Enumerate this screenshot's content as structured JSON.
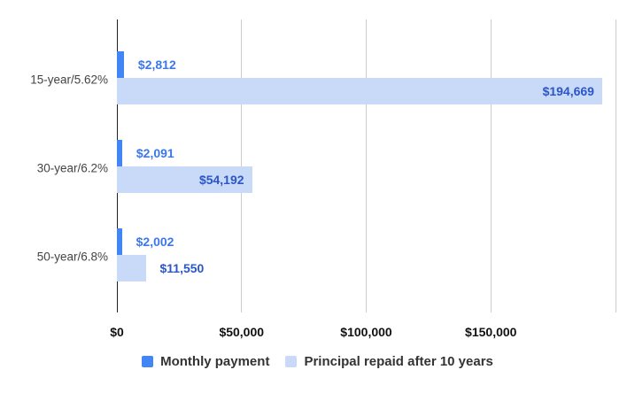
{
  "chart_data": {
    "type": "bar",
    "orientation": "horizontal",
    "title": "",
    "categories": [
      "15-year/5.62%",
      "30-year/6.2%",
      "50-year/6.8%"
    ],
    "series": [
      {
        "name": "Monthly payment",
        "color": "#4285f4",
        "label_color": "#3c78e7",
        "points": [
          {
            "value": 2812,
            "label": "$2,812",
            "label_inside": false
          },
          {
            "value": 2091,
            "label": "$2,091",
            "label_inside": false
          },
          {
            "value": 2002,
            "label": "$2,002",
            "label_inside": false
          }
        ]
      },
      {
        "name": "Principal repaid after 10 years",
        "color": "#c9daf8",
        "label_color": "#2a56c6",
        "points": [
          {
            "value": 194669,
            "label": "$194,669",
            "label_inside": true
          },
          {
            "value": 54192,
            "label": "$54,192",
            "label_inside": true
          },
          {
            "value": 11550,
            "label": "$11,550",
            "label_inside": false
          }
        ]
      }
    ],
    "x_axis": {
      "min": 0,
      "max": 200000,
      "ticks": [
        {
          "value": 0,
          "label": "$0"
        },
        {
          "value": 50000,
          "label": "$50,000"
        },
        {
          "value": 100000,
          "label": "$100,000"
        },
        {
          "value": 150000,
          "label": "$150,000"
        },
        {
          "value": 200000,
          "label": ""
        }
      ]
    },
    "grid": true,
    "gridline_color": "#cccccc",
    "baseline_color": "#222222",
    "background": "#ffffff",
    "legend": {
      "position": "bottom",
      "items": [
        "Monthly payment",
        "Principal repaid after 10 years"
      ]
    }
  }
}
